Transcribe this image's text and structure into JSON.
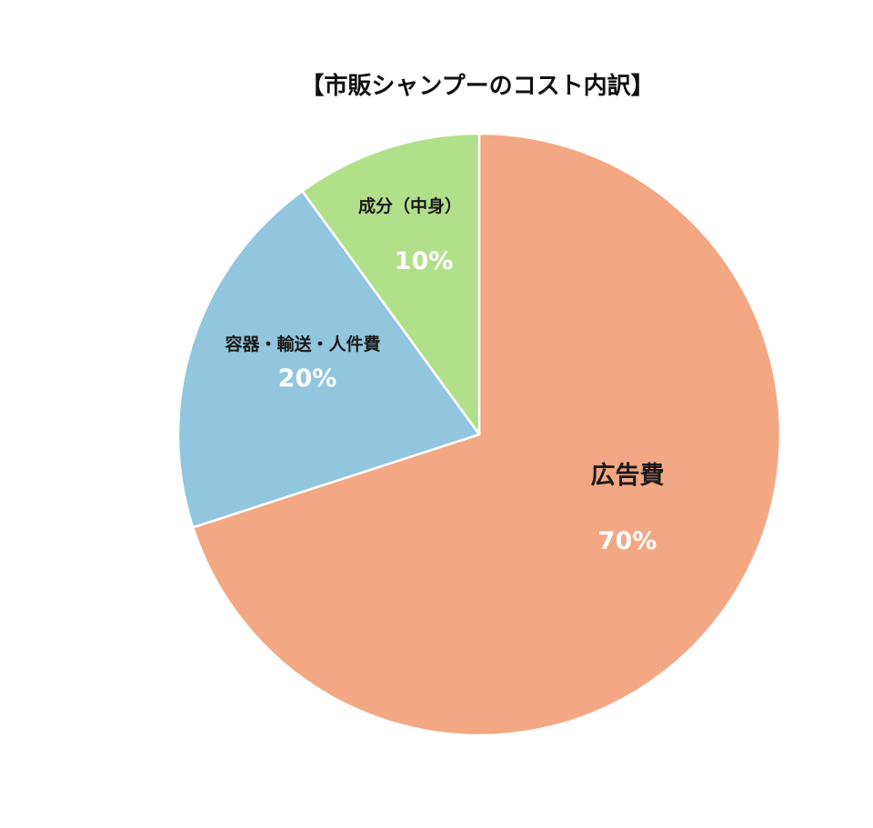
{
  "chart_data": {
    "type": "pie",
    "title": "【市販シャンプーのコスト内訳】",
    "slices": [
      {
        "label": "広告費",
        "value": 70,
        "value_label": "70%",
        "color": "#F3A783"
      },
      {
        "label": "容器・輸送・人件費",
        "value": 20,
        "value_label": "20%",
        "color": "#92C5DE"
      },
      {
        "label": "成分（中身）",
        "value": 10,
        "value_label": "10%",
        "color": "#B2DF8A"
      }
    ],
    "start_angle_deg": 0,
    "direction": "clockwise",
    "slice_border_color": "#ffffff"
  }
}
